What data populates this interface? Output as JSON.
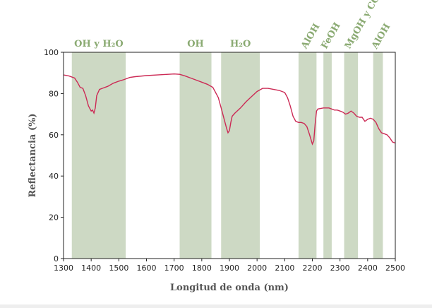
{
  "chart_data": {
    "type": "line",
    "title": "",
    "xlabel": "Longitud de onda (nm)",
    "ylabel": "Reflectancia (%)",
    "xlim": [
      1300,
      2500
    ],
    "ylim": [
      0,
      100
    ],
    "xticks": [
      1300,
      1400,
      1500,
      1600,
      1700,
      1800,
      1900,
      2000,
      2100,
      2200,
      2300,
      2400,
      2500
    ],
    "yticks": [
      0,
      20,
      40,
      60,
      80,
      100
    ],
    "grid": false,
    "line_color": "#cc2a55",
    "band_color": "#cdd9c4",
    "label_color": "#8aaa72",
    "bands": [
      {
        "label": "OH y H₂O",
        "start": 1330,
        "end": 1525,
        "rotated": false
      },
      {
        "label": "OH",
        "start": 1720,
        "end": 1835,
        "rotated": false
      },
      {
        "label": "H₂O",
        "start": 1870,
        "end": 2010,
        "rotated": false
      },
      {
        "label": "AlOH",
        "start": 2150,
        "end": 2215,
        "rotated": true
      },
      {
        "label": "FeOH",
        "start": 2240,
        "end": 2270,
        "rotated": true
      },
      {
        "label": "MgOH y CO₃",
        "start": 2315,
        "end": 2365,
        "rotated": true
      },
      {
        "label": "AlOH",
        "start": 2420,
        "end": 2455,
        "rotated": true
      }
    ],
    "series": [
      {
        "x": [
          1300,
          1320,
          1340,
          1350,
          1360,
          1370,
          1380,
          1390,
          1400,
          1405,
          1410,
          1415,
          1420,
          1430,
          1440,
          1460,
          1480,
          1500,
          1520,
          1540,
          1560,
          1600,
          1650,
          1700,
          1720,
          1740,
          1760,
          1780,
          1800,
          1820,
          1840,
          1860,
          1870,
          1880,
          1890,
          1895,
          1900,
          1905,
          1910,
          1920,
          1940,
          1960,
          1980,
          2000,
          2020,
          2040,
          2060,
          2080,
          2100,
          2110,
          2120,
          2130,
          2140,
          2150,
          2160,
          2170,
          2180,
          2190,
          2200,
          2205,
          2210,
          2215,
          2220,
          2240,
          2260,
          2280,
          2290,
          2300,
          2310,
          2320,
          2330,
          2340,
          2350,
          2360,
          2370,
          2380,
          2390,
          2400,
          2410,
          2420,
          2430,
          2440,
          2450,
          2460,
          2470,
          2480,
          2490,
          2500
        ],
        "y": [
          89,
          88.5,
          87.5,
          85.5,
          83,
          82.5,
          79,
          74,
          71.5,
          72,
          70.5,
          73,
          79,
          82,
          82.5,
          83.5,
          85,
          86,
          86.8,
          87.8,
          88.2,
          88.7,
          89.1,
          89.5,
          89.3,
          88.5,
          87.5,
          86.5,
          85.5,
          84.5,
          83,
          78,
          73,
          68,
          63,
          61,
          62,
          66,
          69,
          70.5,
          73,
          76,
          78.5,
          81,
          82.5,
          82.5,
          82,
          81.5,
          80.5,
          78,
          74,
          69,
          66.5,
          66,
          66,
          65.5,
          64,
          60,
          55.5,
          57,
          65,
          71.5,
          72.5,
          73,
          73,
          72,
          72,
          71.5,
          71,
          70,
          70.5,
          71.5,
          70.5,
          69,
          68.5,
          68.5,
          66.5,
          67.5,
          68,
          67.5,
          66,
          63,
          61,
          60.5,
          60,
          58.5,
          56.5,
          56
        ]
      }
    ]
  }
}
